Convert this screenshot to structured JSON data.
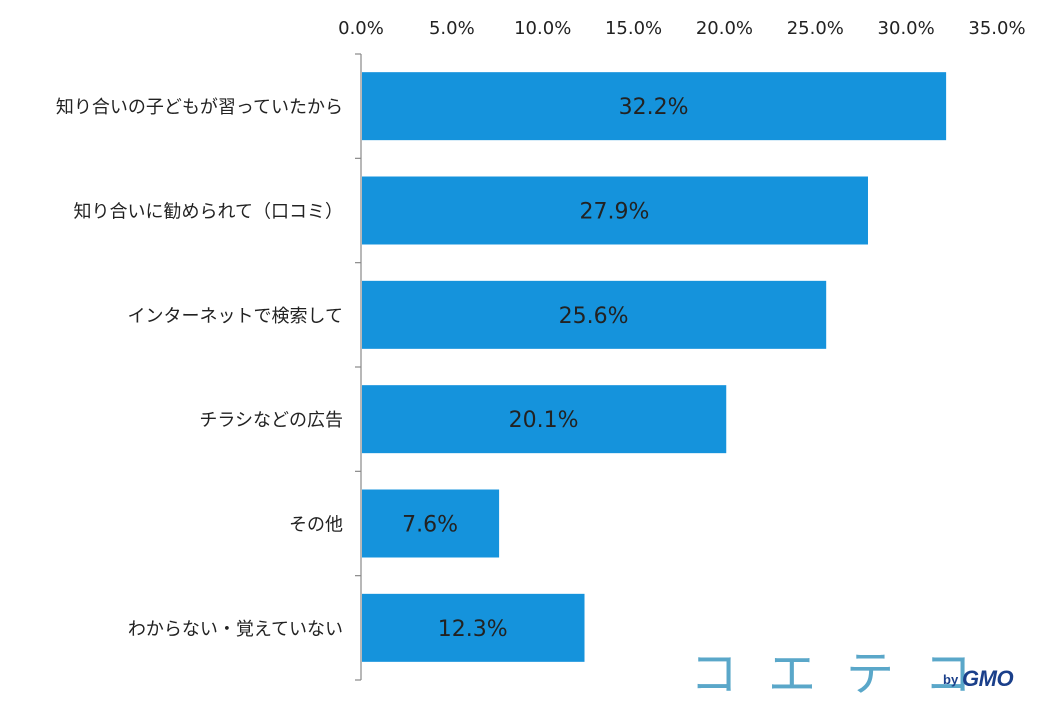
{
  "chart_data": {
    "type": "bar",
    "orientation": "horizontal",
    "categories": [
      "知り合いの子どもが習っていたから",
      "知り合いに勧められて（口コミ）",
      "インターネットで検索して",
      "チラシなどの広告",
      "その他",
      "わからない・覚えていない"
    ],
    "values": [
      32.2,
      27.9,
      25.6,
      20.1,
      7.6,
      12.3
    ],
    "value_labels": [
      "32.2%",
      "27.9%",
      "25.6%",
      "20.1%",
      "7.6%",
      "12.3%"
    ],
    "xlim": [
      0,
      35
    ],
    "xticks": [
      0,
      5,
      10,
      15,
      20,
      25,
      30,
      35
    ],
    "xtick_labels": [
      "0.0%",
      "5.0%",
      "10.0%",
      "15.0%",
      "20.0%",
      "25.0%",
      "30.0%",
      "35.0%"
    ],
    "axis_position": "top",
    "grid": false,
    "bar_color": "#1593dc",
    "title": "",
    "xlabel": "",
    "ylabel": ""
  },
  "logo": {
    "text": "コエテコ",
    "by": "by",
    "brand": "GMO"
  }
}
